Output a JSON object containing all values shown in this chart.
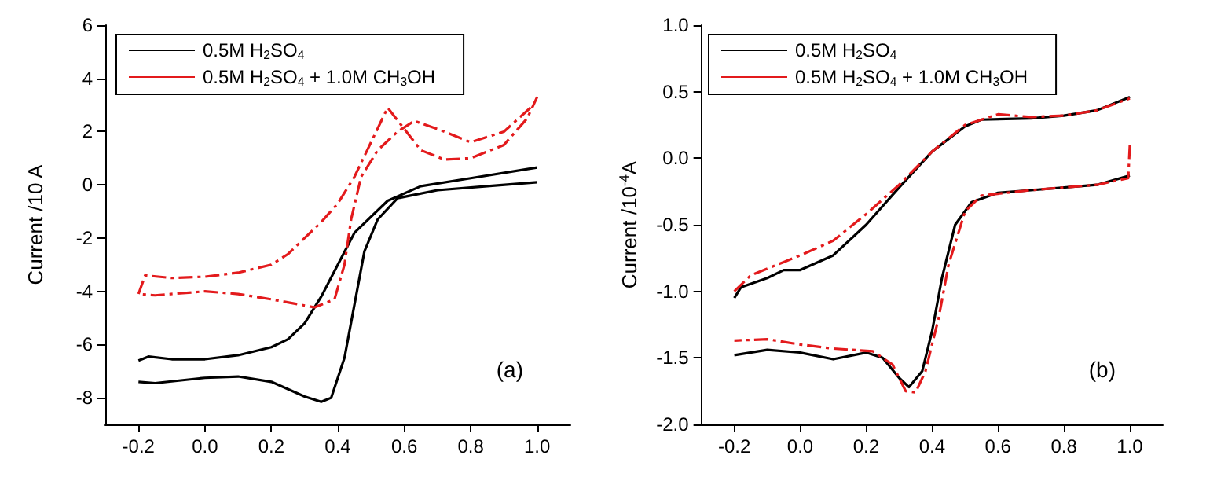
{
  "chart_data": [
    {
      "type": "line",
      "ylabel": "Current /10 A",
      "legend": "top left",
      "annotations": [
        "(a)"
      ],
      "xlim": [
        -0.3,
        1.1
      ],
      "xticks": [
        {
          "value": -0.2,
          "label": "-0.2"
        },
        {
          "value": 0,
          "label": "0.0"
        },
        {
          "value": 0.2,
          "label": "0.2"
        },
        {
          "value": 0.4,
          "label": "0.4"
        },
        {
          "value": 0.6,
          "label": "0.6"
        },
        {
          "value": 0.8,
          "label": "0.8"
        },
        {
          "value": 1,
          "label": "1.0"
        }
      ],
      "ylim": [
        -9,
        6
      ],
      "yticks": [
        -8,
        -6,
        -4,
        -2,
        0,
        2,
        4,
        6
      ],
      "grid": false,
      "series": [
        {
          "name": "0.5M H$_{2}$SO$_{4}$",
          "color": "#000000",
          "line_style": "solid",
          "x": [
            -0.2,
            -0.15,
            0.0,
            0.1,
            0.2,
            0.3,
            0.35,
            0.38,
            0.42,
            0.45,
            0.48,
            0.52,
            0.58,
            0.7,
            0.85,
            1.0
          ],
          "values": [
            -7.4,
            -7.45,
            -7.25,
            -7.2,
            -7.4,
            -7.95,
            -8.15,
            -8.0,
            -6.5,
            -4.5,
            -2.5,
            -1.3,
            -0.5,
            -0.2,
            -0.05,
            0.1
          ]
        },
        {
          "color": "#000000",
          "line_style": "solid",
          "x": [
            1.0,
            0.8,
            0.65,
            0.55,
            0.45,
            0.4,
            0.35,
            0.3,
            0.25,
            0.2,
            0.1,
            0.0,
            -0.1,
            -0.17,
            -0.2
          ],
          "values": [
            0.65,
            0.25,
            -0.05,
            -0.6,
            -1.8,
            -3.0,
            -4.2,
            -5.2,
            -5.8,
            -6.1,
            -6.4,
            -6.55,
            -6.55,
            -6.45,
            -6.6
          ]
        },
        {
          "name": "0.5M H$_{2}$SO$_{4}$ + 1.0M CH$_{3}$OH",
          "color": "#e31a1c",
          "line_style": "dashed",
          "x": [
            -0.2,
            -0.18,
            -0.1,
            0.0,
            0.1,
            0.2,
            0.25,
            0.3,
            0.35,
            0.4,
            0.45,
            0.5,
            0.55,
            0.6,
            0.65,
            0.72,
            0.8,
            0.9,
            0.97,
            1.0
          ],
          "values": [
            -4.1,
            -3.4,
            -3.5,
            -3.45,
            -3.3,
            -3.0,
            -2.6,
            -2.0,
            -1.4,
            -0.7,
            0.3,
            1.6,
            2.9,
            2.1,
            1.3,
            0.95,
            1.0,
            1.5,
            2.5,
            3.3
          ]
        },
        {
          "color": "#e31a1c",
          "line_style": "dashed",
          "x": [
            0.98,
            0.9,
            0.8,
            0.7,
            0.63,
            0.58,
            0.52,
            0.47,
            0.44,
            0.42,
            0.39,
            0.33,
            0.2,
            0.1,
            0.0,
            -0.15,
            -0.2
          ],
          "values": [
            2.9,
            2.0,
            1.6,
            2.1,
            2.4,
            2.0,
            1.3,
            0.3,
            -1.3,
            -3.0,
            -4.3,
            -4.6,
            -4.3,
            -4.1,
            -4.0,
            -4.15,
            -4.1
          ]
        }
      ]
    },
    {
      "type": "line",
      "ylabel": "Current /10$^{-4}$A",
      "legend": "top left",
      "annotations": [
        "(b)"
      ],
      "xlim": [
        -0.3,
        1.1
      ],
      "xticks": [
        {
          "value": -0.2,
          "label": "-0.2"
        },
        {
          "value": 0,
          "label": "0.0"
        },
        {
          "value": 0.2,
          "label": "0.2"
        },
        {
          "value": 0.4,
          "label": "0.4"
        },
        {
          "value": 0.6,
          "label": "0.6"
        },
        {
          "value": 0.8,
          "label": "0.8"
        },
        {
          "value": 1,
          "label": "1.0"
        }
      ],
      "ylim": [
        -2,
        1
      ],
      "yticks": [
        {
          "value": -2,
          "label": "-2.0"
        },
        {
          "value": -1.5,
          "label": "-1.5"
        },
        {
          "value": -1,
          "label": "-1.0"
        },
        {
          "value": -0.5,
          "label": "-0.5"
        },
        {
          "value": 0,
          "label": "0.0"
        },
        {
          "value": 0.5,
          "label": "0.5"
        },
        {
          "value": 1,
          "label": "1.0"
        }
      ],
      "grid": false,
      "series": [
        {
          "name": "0.5M H$_{2}$SO$_{4}$",
          "color": "#000000",
          "line_style": "solid",
          "x": [
            -0.2,
            -0.18,
            -0.1,
            -0.05,
            0.0,
            0.1,
            0.2,
            0.3,
            0.4,
            0.5,
            0.55,
            0.7,
            0.8,
            0.9,
            1.0
          ],
          "values": [
            -1.05,
            -0.97,
            -0.9,
            -0.84,
            -0.84,
            -0.73,
            -0.5,
            -0.22,
            0.05,
            0.24,
            0.29,
            0.3,
            0.32,
            0.36,
            0.46
          ]
        },
        {
          "color": "#000000",
          "line_style": "solid",
          "x": [
            1.0,
            0.9,
            0.7,
            0.6,
            0.52,
            0.47,
            0.43,
            0.4,
            0.37,
            0.33,
            0.3,
            0.25,
            0.2,
            0.1,
            0.0,
            -0.1,
            -0.2
          ],
          "values": [
            -0.13,
            -0.2,
            -0.24,
            -0.26,
            -0.33,
            -0.5,
            -0.9,
            -1.3,
            -1.6,
            -1.72,
            -1.65,
            -1.5,
            -1.46,
            -1.51,
            -1.46,
            -1.44,
            -1.48
          ]
        },
        {
          "name": "0.5M H$_{2}$SO$_{4}$ + 1.0M CH$_{3}$OH",
          "color": "#e31a1c",
          "line_style": "dashed",
          "x": [
            -0.2,
            -0.15,
            -0.05,
            0.0,
            0.1,
            0.2,
            0.3,
            0.4,
            0.5,
            0.6,
            0.7,
            0.8,
            0.9,
            1.0
          ],
          "values": [
            -1.0,
            -0.88,
            -0.78,
            -0.73,
            -0.62,
            -0.42,
            -0.2,
            0.05,
            0.25,
            0.33,
            0.31,
            0.32,
            0.36,
            0.45
          ]
        },
        {
          "color": "#e31a1c",
          "line_style": "dashed",
          "x": [
            1.0,
            0.995,
            0.9,
            0.7,
            0.55,
            0.5,
            0.45,
            0.42,
            0.38,
            0.35,
            0.32,
            0.28,
            0.22,
            0.1,
            0.0,
            -0.1,
            -0.2
          ],
          "values": [
            0.1,
            -0.15,
            -0.2,
            -0.24,
            -0.28,
            -0.4,
            -0.8,
            -1.2,
            -1.6,
            -1.76,
            -1.75,
            -1.55,
            -1.45,
            -1.43,
            -1.4,
            -1.36,
            -1.37
          ]
        }
      ]
    }
  ]
}
